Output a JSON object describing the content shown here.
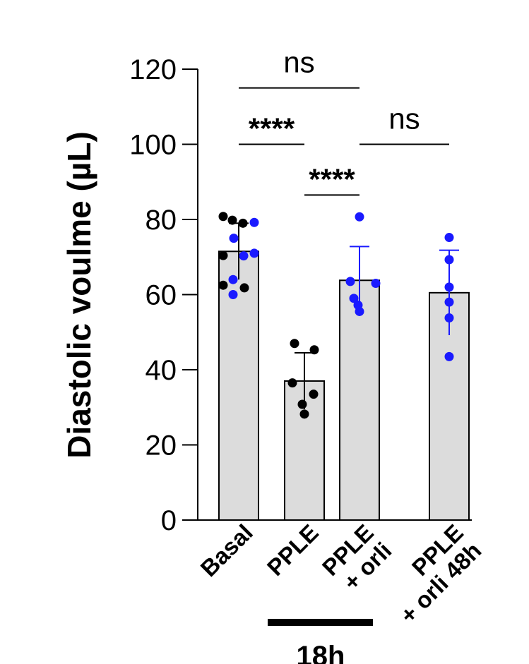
{
  "chart_data": {
    "type": "bar",
    "ylabel": "Diastolic voulme (µL)",
    "ylim": [
      0,
      120
    ],
    "yticks": [
      0,
      20,
      40,
      60,
      80,
      100,
      120
    ],
    "grid": false,
    "categories": [
      {
        "lines": [
          "Basal"
        ]
      },
      {
        "lines": [
          "PPLE"
        ]
      },
      {
        "lines": [
          "PPLE",
          "+ orli"
        ]
      },
      {
        "lines": [
          "PPLE",
          "+ orli 48h"
        ]
      }
    ],
    "bar_color": "#dcdcdc",
    "bars": [
      {
        "mean": 71.5,
        "sd": 7.5,
        "points": [
          {
            "y": 80.8,
            "color": "#000000"
          },
          {
            "y": 79.8,
            "color": "#000000"
          },
          {
            "y": 79.0,
            "color": "#000000"
          },
          {
            "y": 79.2,
            "color": "#1a1aff"
          },
          {
            "y": 75.0,
            "color": "#1a1aff"
          },
          {
            "y": 70.3,
            "color": "#1a1aff"
          },
          {
            "y": 71.0,
            "color": "#1a1aff"
          },
          {
            "y": 70.4,
            "color": "#000000"
          },
          {
            "y": 64.0,
            "color": "#1a1aff"
          },
          {
            "y": 62.5,
            "color": "#000000"
          },
          {
            "y": 61.8,
            "color": "#000000"
          },
          {
            "y": 60.0,
            "color": "#1a1aff"
          }
        ]
      },
      {
        "mean": 37.0,
        "sd": 7.5,
        "points": [
          {
            "y": 47.0,
            "color": "#000000"
          },
          {
            "y": 45.3,
            "color": "#000000"
          },
          {
            "y": 36.5,
            "color": "#000000"
          },
          {
            "y": 33.5,
            "color": "#000000"
          },
          {
            "y": 30.8,
            "color": "#000000"
          },
          {
            "y": 28.2,
            "color": "#000000"
          }
        ]
      },
      {
        "mean": 63.8,
        "sd": 9.0,
        "points": [
          {
            "y": 80.7,
            "color": "#1a1aff"
          },
          {
            "y": 63.5,
            "color": "#1a1aff"
          },
          {
            "y": 63.0,
            "color": "#1a1aff"
          },
          {
            "y": 59.0,
            "color": "#1a1aff"
          },
          {
            "y": 57.2,
            "color": "#1a1aff"
          },
          {
            "y": 55.5,
            "color": "#1a1aff"
          }
        ]
      },
      {
        "mean": 60.5,
        "sd": 11.3,
        "points": [
          {
            "y": 75.2,
            "color": "#1a1aff"
          },
          {
            "y": 69.3,
            "color": "#1a1aff"
          },
          {
            "y": 62.0,
            "color": "#1a1aff"
          },
          {
            "y": 58.0,
            "color": "#1a1aff"
          },
          {
            "y": 53.8,
            "color": "#1a1aff"
          },
          {
            "y": 43.5,
            "color": "#1a1aff"
          }
        ]
      }
    ],
    "significance": [
      {
        "from": 0,
        "to": 2,
        "y": 115,
        "label": "ns"
      },
      {
        "from": 0,
        "to": 1,
        "y": 100,
        "label": "****"
      },
      {
        "from": 2,
        "to": 3,
        "y": 100,
        "label": "ns"
      },
      {
        "from": 1,
        "to": 2,
        "y": 86.5,
        "label": "****"
      }
    ],
    "group_annotation": {
      "label": "18h",
      "from": 1,
      "to": 2
    }
  }
}
